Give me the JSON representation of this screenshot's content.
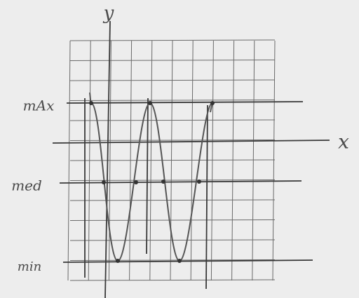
{
  "axes": {
    "y": "y",
    "x": "x"
  },
  "levels": {
    "max": "mAx",
    "med": "med",
    "min": "min"
  }
}
